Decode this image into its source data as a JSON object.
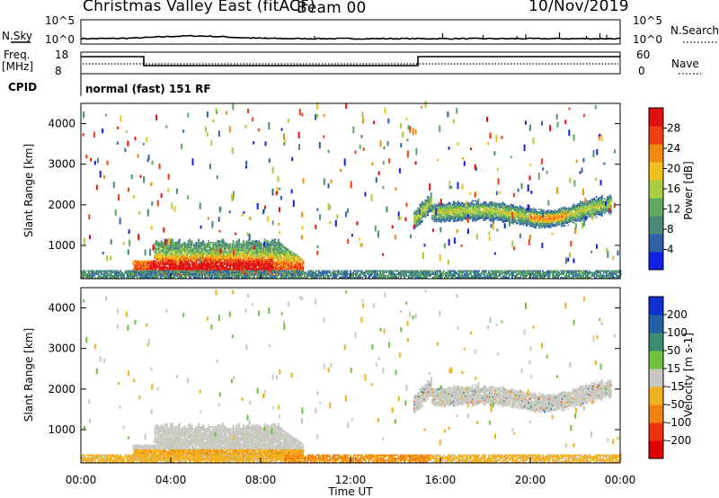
{
  "header": {
    "station": "Christmas Valley East (fitACF)",
    "beam": "Beam 00",
    "date": "10/Nov/2019"
  },
  "noise_panel": {
    "left_label": "N.Sky",
    "right_label": "N.Search",
    "tick_top": "10^5",
    "tick_bottom": "10^0"
  },
  "freq_panel": {
    "left_label": "Freq.",
    "left_unit": "[MHz]",
    "right_label": "Nave",
    "tick_top_left": "18",
    "tick_bottom_left": "8",
    "tick_top_right": "60",
    "tick_bottom_right": "0",
    "cpid_label": "CPID",
    "cpid_text": "normal (fast) 151 RF"
  },
  "chart_data": [
    {
      "type": "heatmap",
      "title": "",
      "ylabel": "Slant Range [km]",
      "xlabel": "",
      "ylim": [
        180,
        4500
      ],
      "y_ticks": [
        "1000",
        "2000",
        "3000",
        "4000"
      ],
      "colorbar": {
        "label": "Power [dB]",
        "range": [
          0,
          32
        ],
        "ticks": [
          "4",
          "8",
          "12",
          "16",
          "20",
          "24",
          "28"
        ],
        "colors": [
          "#1020e6",
          "#3060a8",
          "#4a8a7a",
          "#60a860",
          "#a8cc40",
          "#f0c020",
          "#f08a10",
          "#ee4010",
          "#e01010"
        ]
      },
      "regions": [
        {
          "t": [
            2.3,
            9.9
          ],
          "r": [
            200,
            1150
          ],
          "desc": "strong echoes 20-32 dB near 300-700 km"
        },
        {
          "t": [
            14.8,
            23.6
          ],
          "r": [
            1300,
            2400
          ],
          "desc": "band 8-24 dB between 1500 and 2200 km"
        }
      ]
    },
    {
      "type": "heatmap",
      "title": "",
      "ylabel": "Slant Range [km]",
      "xlabel": "Time UT",
      "ylim": [
        180,
        4500
      ],
      "y_ticks": [
        "1000",
        "2000",
        "3000",
        "4000"
      ],
      "x_ticks": [
        "00:00",
        "04:00",
        "08:00",
        "12:00",
        "16:00",
        "20:00",
        "00:00"
      ],
      "xlim": [
        0,
        24
      ],
      "colorbar": {
        "label": "Velocity [m s-1]",
        "range": [
          -250,
          250
        ],
        "ticks": [
          "200",
          "100",
          "50",
          "15",
          "-15",
          "-50",
          "-100",
          "-200"
        ],
        "colors": [
          "#1030d0",
          "#2060a8",
          "#3c8c70",
          "#70c040",
          "#c8c8c0",
          "#f0b020",
          "#f08010",
          "#f03010",
          "#e00000"
        ]
      },
      "regions": [
        {
          "t": [
            2.5,
            9.5
          ],
          "r": [
            400,
            1150
          ],
          "desc": "ground scatter, |v| < 15"
        },
        {
          "t": [
            14.8,
            23.6
          ],
          "r": [
            1300,
            2400
          ],
          "desc": "ground scatter, |v| < 15"
        },
        {
          "t": [
            0,
            24
          ],
          "r": [
            180,
            400
          ],
          "desc": "near-range echoes -15 to -100 m/s"
        }
      ]
    }
  ]
}
